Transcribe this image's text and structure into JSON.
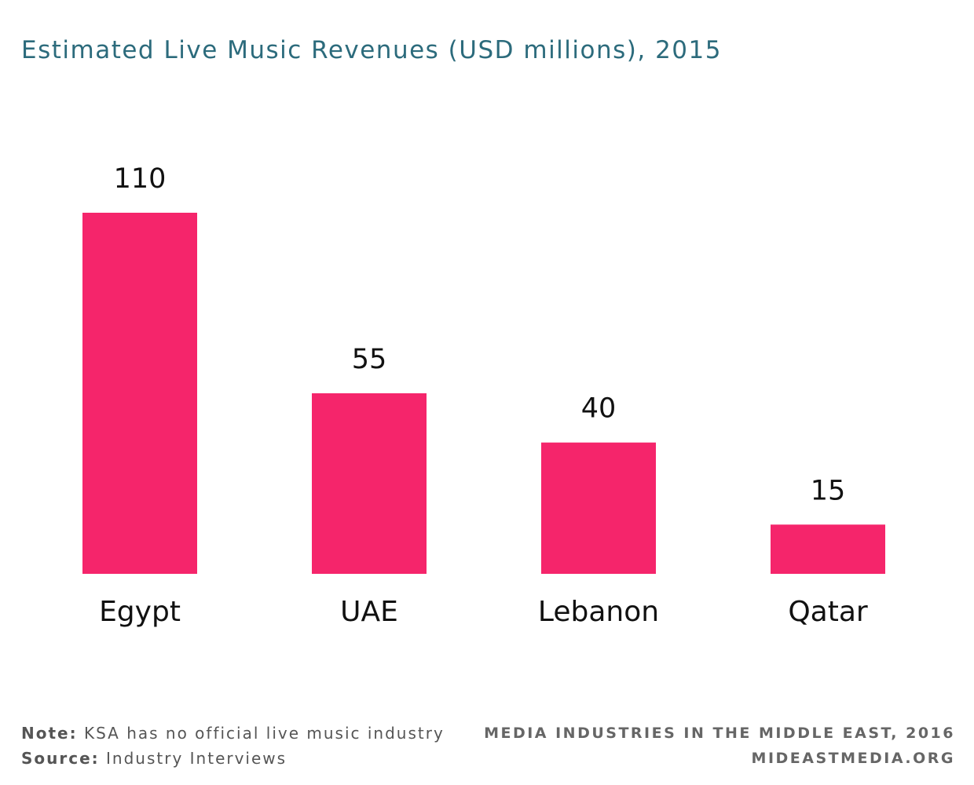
{
  "chart_data": {
    "type": "bar",
    "title": "Estimated Live Music Revenues (USD millions), 2015",
    "categories": [
      "Egypt",
      "UAE",
      "Lebanon",
      "Qatar"
    ],
    "values": [
      110,
      55,
      40,
      15
    ],
    "data_labels": [
      "110",
      "55",
      "40",
      "15"
    ],
    "xlabel": "",
    "ylabel": "",
    "ylim": [
      0,
      110
    ],
    "grid": false,
    "legend": "none"
  },
  "colors": {
    "bar": "#f5256b",
    "title": "#2c6b7c",
    "label": "#111111"
  },
  "footer": {
    "note_label": "Note:",
    "note_text": "KSA has no official live music industry",
    "source_label": "Source:",
    "source_text": "Industry Interviews",
    "publication": "MEDIA INDUSTRIES IN THE MIDDLE EAST, 2016",
    "website": "MIDEASTMEDIA.ORG"
  }
}
